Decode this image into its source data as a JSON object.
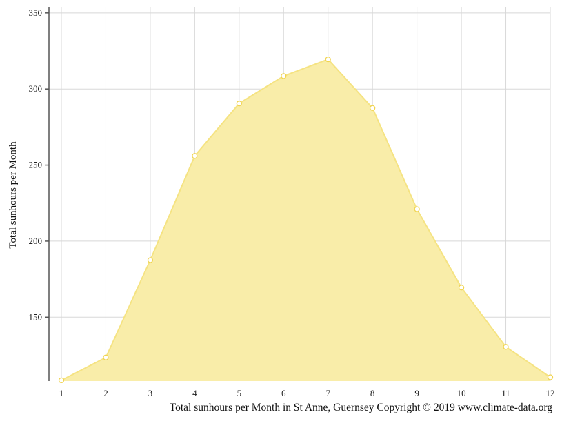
{
  "chart_data": {
    "type": "area",
    "x": [
      1,
      2,
      3,
      4,
      5,
      6,
      7,
      8,
      9,
      10,
      11,
      12
    ],
    "series": [
      {
        "values": [
          108.5,
          123.5,
          187.5,
          256,
          290.5,
          308.5,
          319.5,
          287.5,
          221,
          169.5,
          130.5,
          110.5
        ]
      }
    ],
    "xlabel": "",
    "ylabel": "Total sunhours per Month",
    "ylim": [
      108,
      354
    ],
    "yticks": [
      150,
      200,
      250,
      300,
      350
    ],
    "grid": true,
    "legend": "none",
    "colors": {
      "fill": "#f9eda9",
      "line": "#f5e382",
      "marker_stroke": "#f0d451",
      "grid": "#d8d8d8",
      "axis": "#555555"
    }
  },
  "caption": "Total sunhours per Month in St Anne, Guernsey Copyright © 2019 www.climate-data.org"
}
